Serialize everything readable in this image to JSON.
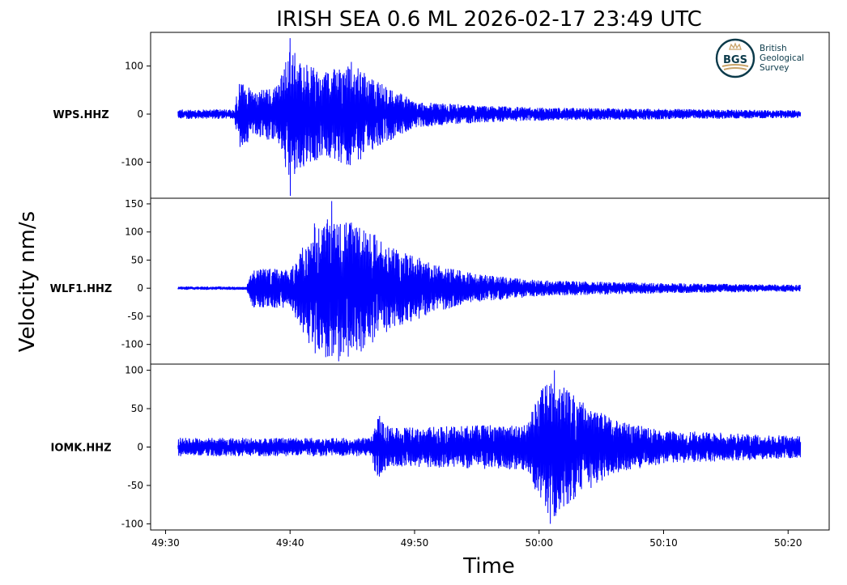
{
  "chart_data": {
    "type": "line",
    "title": "IRISH SEA 0.6 ML   2026-02-17 23:49 UTC",
    "xlabel": "Time",
    "ylabel": "Velocity nm/s",
    "x_ticks": [
      "49:30",
      "49:40",
      "49:50",
      "50:00",
      "50:10",
      "50:20"
    ],
    "x_range": [
      "49:28.8",
      "50:23.3"
    ],
    "trace_range": [
      "49:31",
      "50:21"
    ],
    "grid": false,
    "line_color": "#0000ff",
    "logo": {
      "abbr": "BGS",
      "lines": [
        "British",
        "Geological",
        "Survey"
      ],
      "color": "#0b3a4a",
      "accent": "#c9a46a"
    },
    "series": [
      {
        "name": "WPS.HHZ",
        "ylim": [
          -175,
          170
        ],
        "yticks": [
          {
            "v": 100,
            "label": "100"
          },
          {
            "v": 0,
            "label": "0"
          },
          {
            "v": -100,
            "label": "-100"
          }
        ],
        "peak": 158,
        "trough": -170,
        "envelope": [
          {
            "t": "49:31",
            "a": 10
          },
          {
            "t": "49:35.5",
            "a": 10
          },
          {
            "t": "49:36",
            "a": 80
          },
          {
            "t": "49:37",
            "a": 45
          },
          {
            "t": "49:39",
            "a": 60
          },
          {
            "t": "49:40",
            "a": 140
          },
          {
            "t": "49:41",
            "a": 110
          },
          {
            "t": "49:43",
            "a": 90
          },
          {
            "t": "49:45",
            "a": 110
          },
          {
            "t": "49:47",
            "a": 70
          },
          {
            "t": "49:50",
            "a": 28
          },
          {
            "t": "49:55",
            "a": 18
          },
          {
            "t": "50:00",
            "a": 14
          },
          {
            "t": "50:10",
            "a": 11
          },
          {
            "t": "50:21",
            "a": 8
          }
        ]
      },
      {
        "name": "WLF1.HHZ",
        "ylim": [
          -135,
          160
        ],
        "yticks": [
          {
            "v": 150,
            "label": "150"
          },
          {
            "v": 100,
            "label": "100"
          },
          {
            "v": 50,
            "label": "50"
          },
          {
            "v": 0,
            "label": "0"
          },
          {
            "v": -50,
            "label": "-50"
          },
          {
            "v": -100,
            "label": "-100"
          }
        ],
        "peak": 155,
        "trough": -130,
        "envelope": [
          {
            "t": "49:31",
            "a": 3
          },
          {
            "t": "49:36.5",
            "a": 3
          },
          {
            "t": "49:37",
            "a": 35
          },
          {
            "t": "49:40",
            "a": 35
          },
          {
            "t": "49:42",
            "a": 120
          },
          {
            "t": "49:44",
            "a": 130
          },
          {
            "t": "49:46",
            "a": 110
          },
          {
            "t": "49:48",
            "a": 75
          },
          {
            "t": "49:52",
            "a": 40
          },
          {
            "t": "49:55",
            "a": 25
          },
          {
            "t": "50:00",
            "a": 14
          },
          {
            "t": "50:10",
            "a": 9
          },
          {
            "t": "50:21",
            "a": 6
          }
        ]
      },
      {
        "name": "IOMK.HHZ",
        "ylim": [
          -108,
          108
        ],
        "yticks": [
          {
            "v": 100,
            "label": "100"
          },
          {
            "v": 50,
            "label": "50"
          },
          {
            "v": 0,
            "label": "0"
          },
          {
            "v": -50,
            "label": "-50"
          },
          {
            "v": -100,
            "label": "-100"
          }
        ],
        "peak": 100,
        "trough": -100,
        "envelope": [
          {
            "t": "49:31",
            "a": 12
          },
          {
            "t": "49:46.5",
            "a": 12
          },
          {
            "t": "49:47",
            "a": 45
          },
          {
            "t": "49:48",
            "a": 25
          },
          {
            "t": "49:59",
            "a": 30
          },
          {
            "t": "50:00",
            "a": 70
          },
          {
            "t": "50:01",
            "a": 95
          },
          {
            "t": "50:03",
            "a": 65
          },
          {
            "t": "50:06",
            "a": 35
          },
          {
            "t": "50:10",
            "a": 22
          },
          {
            "t": "50:21",
            "a": 14
          }
        ]
      }
    ]
  }
}
